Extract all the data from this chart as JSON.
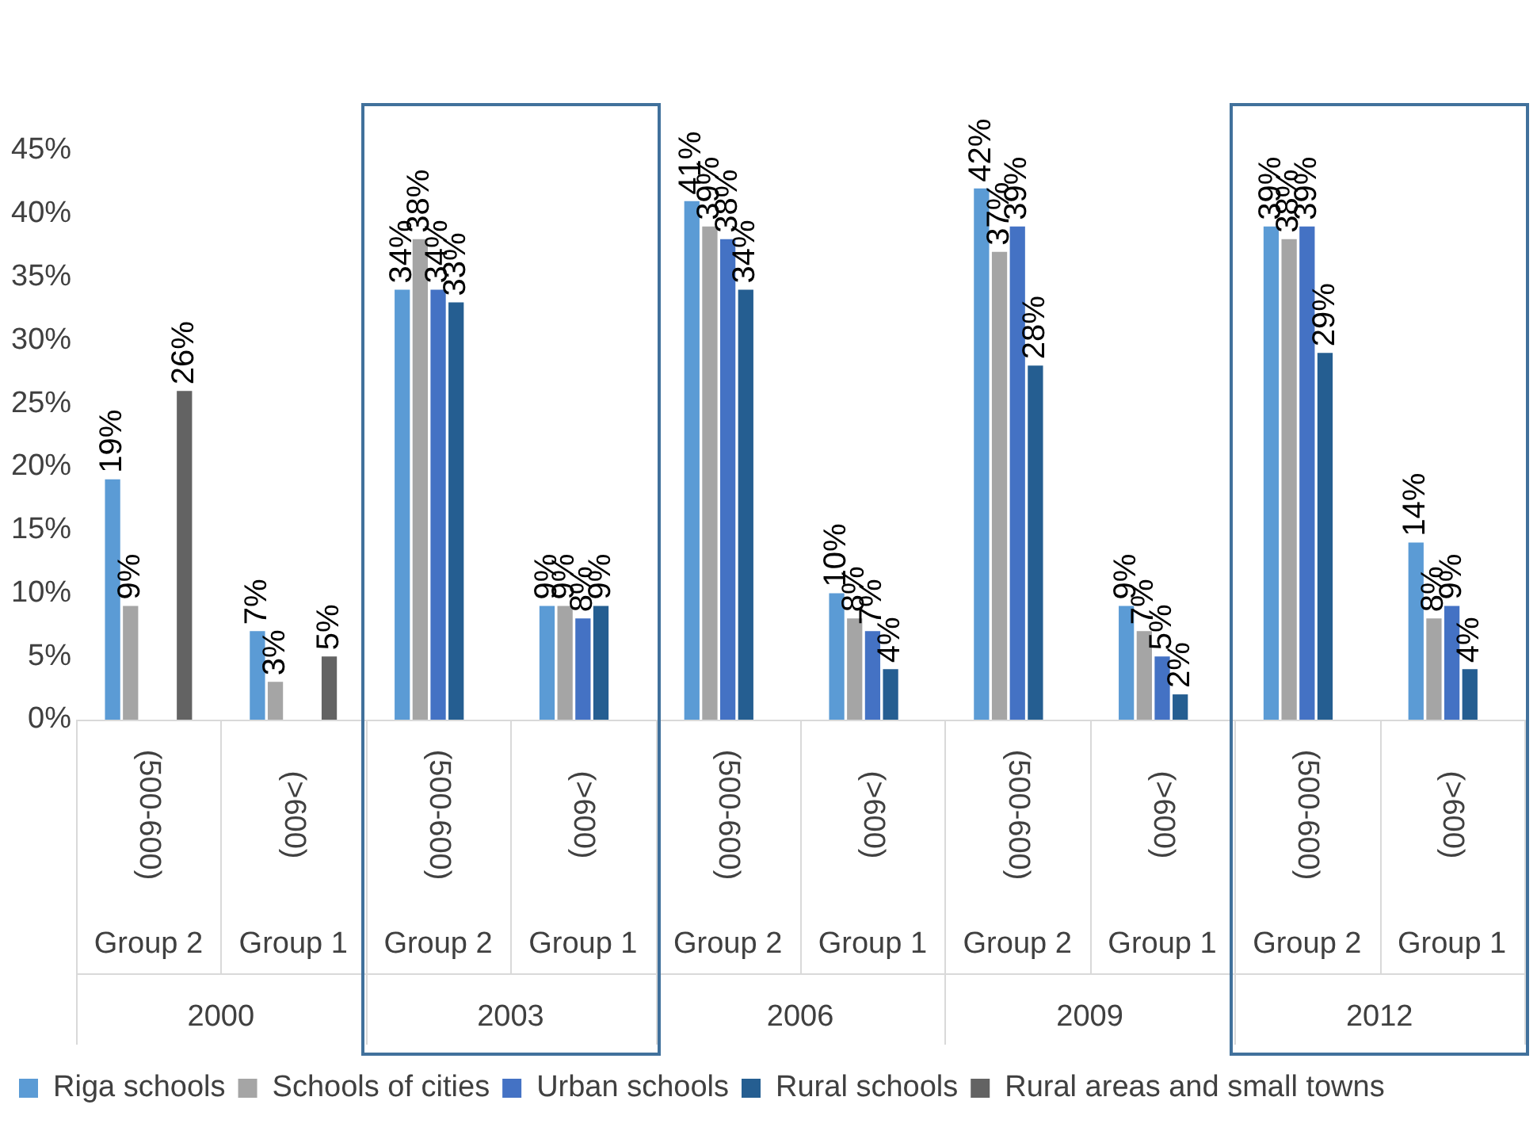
{
  "chart_data": {
    "type": "bar",
    "categories": [
      "(500-600)\nGroup 2",
      "(>600)\nGroup 1",
      "(500-600)\nGroup 2",
      "(>600)\nGroup 1",
      "(500-600)\nGroup 2",
      "(>600)\nGroup 1",
      "(500-600)\nGroup 2",
      "(>600)\nGroup 1",
      "(500-600)\nGroup 2",
      "(>600)\nGroup 1"
    ],
    "annotations": [
      "2000",
      "2003",
      "2006",
      "2009",
      "2012"
    ],
    "series": [
      {
        "name": "Riga schools",
        "color": "#5b9bd5",
        "values": [
          19,
          7,
          34,
          9,
          41,
          10,
          42,
          9,
          39,
          14
        ],
        "value_labels": [
          "19%",
          "7%",
          "34%",
          "9%",
          "41%",
          "10%",
          "42%",
          "9%",
          "39%",
          "14%"
        ]
      },
      {
        "name": "Schools of cities",
        "color": "#a5a5a5",
        "values": [
          9,
          3,
          38,
          9,
          39,
          8,
          37,
          7,
          38,
          8
        ],
        "value_labels": [
          "9%",
          "3%",
          "38%",
          "9%",
          "39%",
          "8%",
          "37%",
          "7%",
          "38%",
          "8%"
        ]
      },
      {
        "name": "Urban schools",
        "color": "#4472c4",
        "values": [
          null,
          null,
          34,
          8,
          38,
          7,
          39,
          5,
          39,
          9
        ],
        "value_labels": [
          null,
          null,
          "34%",
          "8%",
          "38%",
          "7%",
          "39%",
          "5%",
          "39%",
          "9%"
        ]
      },
      {
        "name": "Rural schools",
        "color": "#255e91",
        "values": [
          null,
          null,
          33,
          9,
          34,
          4,
          28,
          2,
          29,
          4
        ],
        "value_labels": [
          null,
          null,
          "33%",
          "9%",
          "34%",
          "4%",
          "28%",
          "2%",
          "29%",
          "4%"
        ]
      },
      {
        "name": "Rural areas and small towns",
        "color": "#636363",
        "values": [
          26,
          5,
          null,
          null,
          null,
          null,
          null,
          null,
          null,
          null
        ],
        "value_labels": [
          "26%",
          "5%",
          null,
          null,
          null,
          null,
          null,
          null,
          null,
          null
        ]
      }
    ],
    "ylim": [
      0,
      45
    ],
    "yticks": [
      {
        "value": 0,
        "label": "0%"
      },
      {
        "value": 5,
        "label": "5%"
      },
      {
        "value": 10,
        "label": "10%"
      },
      {
        "value": 15,
        "label": "15%"
      },
      {
        "value": 20,
        "label": "20%"
      },
      {
        "value": 25,
        "label": "25%"
      },
      {
        "value": 30,
        "label": "30%"
      },
      {
        "value": 35,
        "label": "35%"
      },
      {
        "value": 40,
        "label": "40%"
      },
      {
        "value": 45,
        "label": "45%"
      }
    ],
    "grid": false,
    "legend": "bottom"
  }
}
